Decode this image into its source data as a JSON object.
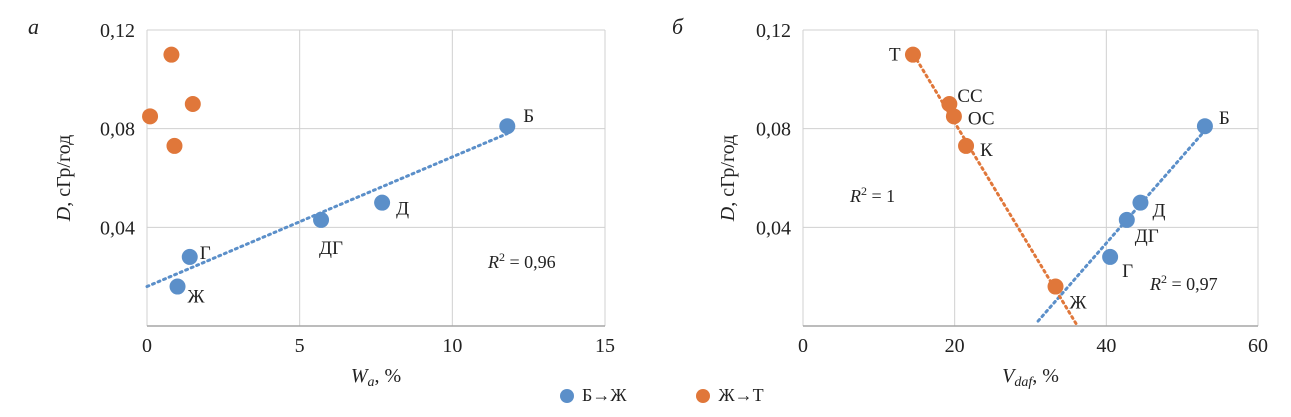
{
  "colors": {
    "blue": "#5b8fc9",
    "orange": "#e0773a",
    "grid": "#d0d0d0",
    "axis": "#a6a6a6"
  },
  "legend": {
    "items": [
      {
        "label": "Б→Ж",
        "color": "#5b8fc9"
      },
      {
        "label": "Ж→Т",
        "color": "#e0773a"
      }
    ]
  },
  "chart_data": [
    {
      "type": "scatter",
      "panel_letter": "а",
      "xlabel": "W",
      "xlabel_sub": "a",
      "xlabel_unit": ", %",
      "ylabel": "D, сГр/год",
      "xlim": [
        0,
        15
      ],
      "ylim": [
        0,
        0.12
      ],
      "xticks": [
        "0",
        "5",
        "10",
        "15"
      ],
      "yticks": [
        "",
        "0,04",
        "0,08",
        "0,12"
      ],
      "annotation": "R² = 0,96",
      "series": [
        {
          "name": "Б→Ж",
          "color": "#5b8fc9",
          "points": [
            {
              "x": 11.8,
              "y": 0.081,
              "label": "Б"
            },
            {
              "x": 7.7,
              "y": 0.05,
              "label": "Д"
            },
            {
              "x": 5.7,
              "y": 0.043,
              "label": "ДГ"
            },
            {
              "x": 1.4,
              "y": 0.028,
              "label": "Г"
            },
            {
              "x": 1.0,
              "y": 0.016,
              "label": "Ж"
            }
          ],
          "trendline": {
            "x1": 0,
            "y1": 0.016,
            "x2": 11.8,
            "y2": 0.078
          }
        },
        {
          "name": "Ж→Т",
          "color": "#e0773a",
          "points": [
            {
              "x": 0.8,
              "y": 0.11
            },
            {
              "x": 1.5,
              "y": 0.09
            },
            {
              "x": 0.1,
              "y": 0.085
            },
            {
              "x": 0.9,
              "y": 0.073
            }
          ]
        }
      ]
    },
    {
      "type": "scatter",
      "panel_letter": "б",
      "xlabel": "V",
      "xlabel_sub": "daf",
      "xlabel_unit": ", %",
      "ylabel": "D, сГр/год",
      "xlim": [
        0,
        60
      ],
      "ylim": [
        0,
        0.12
      ],
      "xticks": [
        "0",
        "20",
        "40",
        "60"
      ],
      "yticks": [
        "",
        "0,04",
        "0,08",
        "0,12"
      ],
      "annotations": [
        "R² = 1",
        "R² = 0,97"
      ],
      "series": [
        {
          "name": "Б→Ж",
          "color": "#5b8fc9",
          "points": [
            {
              "x": 53.0,
              "y": 0.081,
              "label": "Б"
            },
            {
              "x": 44.5,
              "y": 0.05,
              "label": "Д"
            },
            {
              "x": 42.7,
              "y": 0.043,
              "label": "ДГ"
            },
            {
              "x": 40.5,
              "y": 0.028,
              "label": "Г"
            }
          ],
          "trendline": {
            "x1": 31.0,
            "y1": 0.002,
            "x2": 53.5,
            "y2": 0.081
          }
        },
        {
          "name": "Ж→Т",
          "color": "#e0773a",
          "points": [
            {
              "x": 14.5,
              "y": 0.11,
              "label": "Т"
            },
            {
              "x": 19.3,
              "y": 0.09,
              "label": "СС"
            },
            {
              "x": 19.9,
              "y": 0.085,
              "label": "ОС"
            },
            {
              "x": 21.5,
              "y": 0.073,
              "label": "К"
            },
            {
              "x": 33.3,
              "y": 0.016,
              "label": "Ж"
            }
          ],
          "trendline": {
            "x1": 14.6,
            "y1": 0.11,
            "x2": 36.0,
            "y2": 0.001
          }
        }
      ]
    }
  ]
}
